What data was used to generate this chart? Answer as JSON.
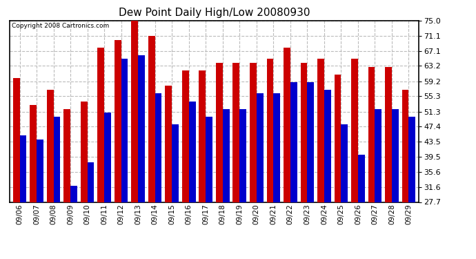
{
  "title": "Dew Point Daily High/Low 20080930",
  "copyright": "Copyright 2008 Cartronics.com",
  "dates": [
    "09/06",
    "09/07",
    "09/08",
    "09/09",
    "09/10",
    "09/11",
    "09/12",
    "09/13",
    "09/14",
    "09/15",
    "09/16",
    "09/17",
    "09/18",
    "09/19",
    "09/20",
    "09/21",
    "09/22",
    "09/23",
    "09/24",
    "09/25",
    "09/26",
    "09/27",
    "09/28",
    "09/29"
  ],
  "high": [
    60.0,
    53.0,
    57.0,
    52.0,
    54.0,
    68.0,
    70.0,
    75.0,
    71.0,
    58.0,
    62.0,
    62.0,
    64.0,
    64.0,
    64.0,
    65.0,
    68.0,
    64.0,
    65.0,
    61.0,
    65.0,
    63.0,
    63.0,
    57.0
  ],
  "low": [
    45.0,
    44.0,
    50.0,
    32.0,
    38.0,
    51.0,
    65.0,
    66.0,
    56.0,
    48.0,
    54.0,
    50.0,
    52.0,
    52.0,
    56.0,
    56.0,
    59.0,
    59.0,
    57.0,
    48.0,
    40.0,
    52.0,
    52.0,
    50.0
  ],
  "high_color": "#cc0000",
  "low_color": "#0000cc",
  "yticks": [
    27.7,
    31.6,
    35.6,
    39.5,
    43.5,
    47.4,
    51.3,
    55.3,
    59.2,
    63.2,
    67.1,
    71.1,
    75.0
  ],
  "ymin": 27.7,
  "ymax": 75.0,
  "bg_color": "#ffffff",
  "grid_color": "#bbbbbb",
  "bar_width": 0.4
}
